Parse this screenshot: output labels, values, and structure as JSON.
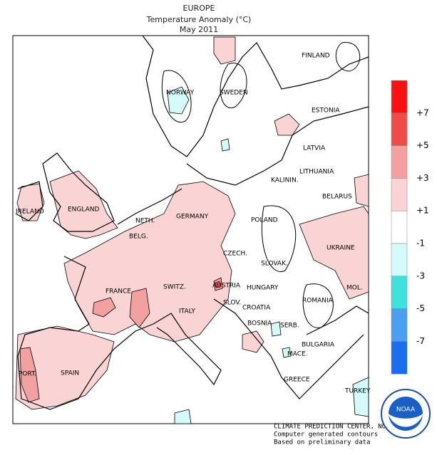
{
  "header": {
    "region": "EUROPE",
    "title": "Temperature Anomaly (°C)",
    "period": "May 2011"
  },
  "labels": [
    "FINLAND",
    "NORWAY",
    "SWEDEN",
    "ESTONIA",
    "LATVIA",
    "LITHUANIA",
    "KALININ.",
    "BELARUS",
    "IRELAND",
    "ENGLAND",
    "NETH.",
    "GERMANY",
    "POLAND",
    "BELG.",
    "CZECH.",
    "UKRAINE",
    "SLOVAK.",
    "FRANCE",
    "SWITZ.",
    "AUSTRIA",
    "HUNGARY",
    "ROMANIA",
    "MOL.",
    "ITALY",
    "SLOV.",
    "CROATIA",
    "BOSNIA",
    "SERB.",
    "BULGARIA",
    "MACE.",
    "PORT.",
    "SPAIN",
    "GREECE",
    "TURKEY"
  ],
  "legend": {
    "colors": [
      "#ff1010",
      "#f04a4a",
      "#f3a0a0",
      "#fad4d4",
      "#ffffff",
      "#d4fafa",
      "#40e0dc",
      "#4aa0f0",
      "#1a6ff0"
    ],
    "labels": [
      "+7",
      "+5",
      "+3",
      "+1",
      "-1",
      "-3",
      "-5",
      "-7"
    ]
  },
  "credits": [
    "CLIMATE PREDICTION CENTER, NOAA",
    "Computer generated contours",
    "Based on preliminary data"
  ]
}
